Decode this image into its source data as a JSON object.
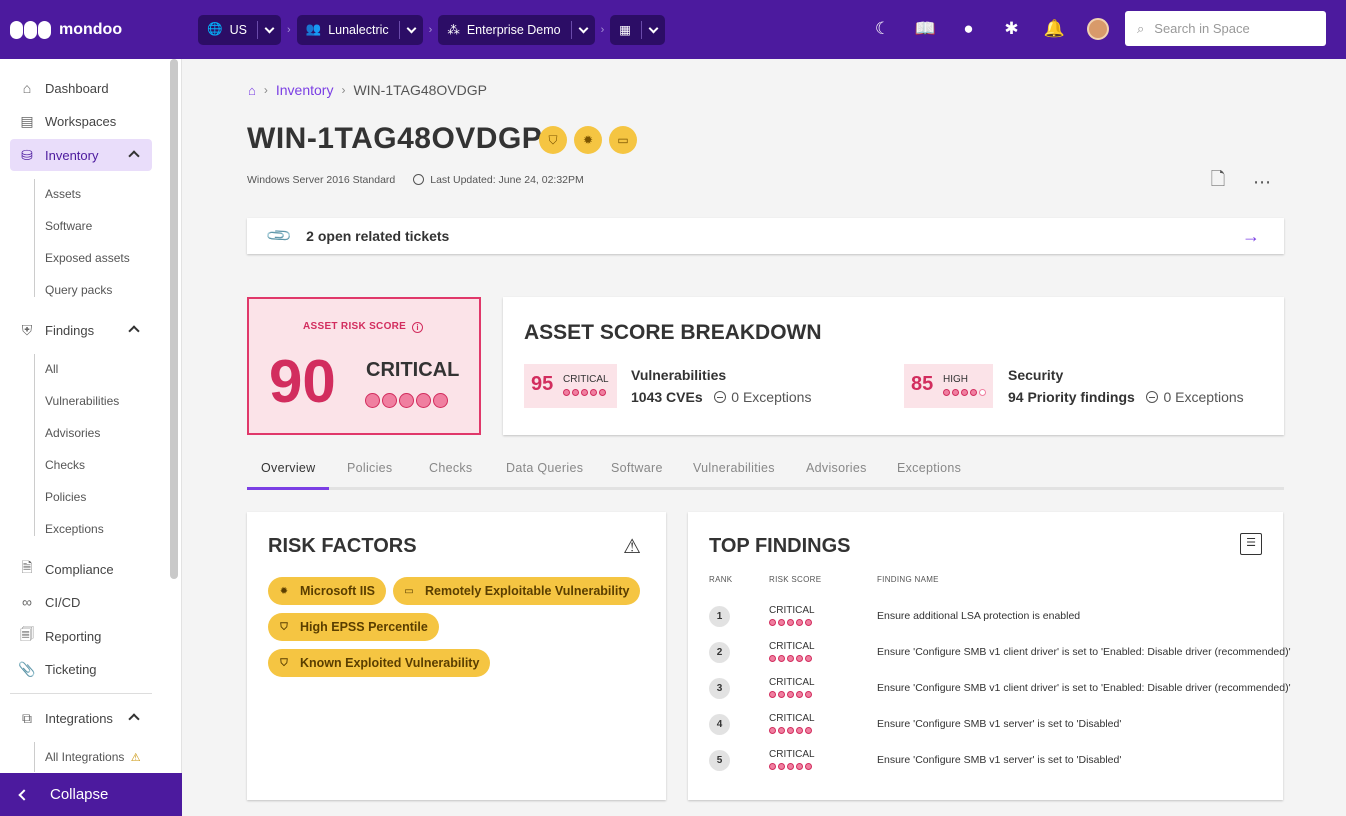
{
  "app": {
    "brand": "mondoo"
  },
  "topbar": {
    "scopes": [
      {
        "label": "US",
        "icon": "globe-icon"
      },
      {
        "label": "Lunalectric",
        "icon": "organization-icon"
      },
      {
        "label": "Enterprise Demo",
        "icon": "space-icon"
      },
      {
        "label": "",
        "icon": "grid-icon"
      }
    ],
    "search_placeholder": "Search in Space"
  },
  "sidebar": {
    "dashboard": "Dashboard",
    "workspaces": "Workspaces",
    "inventory": "Inventory",
    "inventory_items": [
      "Assets",
      "Software",
      "Exposed assets",
      "Query packs"
    ],
    "findings": "Findings",
    "findings_items": [
      "All",
      "Vulnerabilities",
      "Advisories",
      "Checks",
      "Policies",
      "Exceptions"
    ],
    "compliance": "Compliance",
    "cicd": "CI/CD",
    "reporting": "Reporting",
    "ticketing": "Ticketing",
    "integrations": "Integrations",
    "integrations_items": [
      "All Integrations"
    ],
    "collapse": "Collapse"
  },
  "breadcrumb": {
    "parent": "Inventory",
    "current": "WIN-1TAG48OVDGP"
  },
  "asset": {
    "title": "WIN-1TAG48OVDGP",
    "os": "Windows Server 2016 Standard",
    "last_updated": "Last Updated: June 24, 02:32PM"
  },
  "tickets": {
    "label": "2 open related tickets"
  },
  "risk": {
    "label": "ASSET RISK SCORE",
    "score": "90",
    "severity": "CRITICAL",
    "level": 5
  },
  "breakdown": {
    "title": "ASSET SCORE BREAKDOWN",
    "vulnerabilities": {
      "score": "95",
      "severity": "CRITICAL",
      "level": 5,
      "name": "Vulnerabilities",
      "count": "1043 CVEs",
      "exceptions": "0 Exceptions"
    },
    "security": {
      "score": "85",
      "severity": "HIGH",
      "level": 4,
      "name": "Security",
      "count": "94 Priority findings",
      "exceptions": "0 Exceptions"
    }
  },
  "tabs": [
    "Overview",
    "Policies",
    "Checks",
    "Data Queries",
    "Software",
    "Vulnerabilities",
    "Advisories",
    "Exceptions"
  ],
  "risk_factors": {
    "title": "RISK FACTORS",
    "items": [
      "Microsoft IIS",
      "Remotely Exploitable Vulnerability",
      "High EPSS Percentile",
      "Known Exploited Vulnerability"
    ]
  },
  "top_findings": {
    "title": "TOP FINDINGS",
    "columns": [
      "RANK",
      "RISK SCORE",
      "FINDING NAME"
    ],
    "rows": [
      {
        "rank": "1",
        "score": "CRITICAL",
        "name": "Ensure additional LSA protection is enabled"
      },
      {
        "rank": "2",
        "score": "CRITICAL",
        "name": "Ensure 'Configure SMB v1 client driver' is set to 'Enabled: Disable driver (recommended)'"
      },
      {
        "rank": "3",
        "score": "CRITICAL",
        "name": "Ensure 'Configure SMB v1 client driver' is set to 'Enabled: Disable driver (recommended)'"
      },
      {
        "rank": "4",
        "score": "CRITICAL",
        "name": "Ensure 'Configure SMB v1 server' is set to 'Disabled'"
      },
      {
        "rank": "5",
        "score": "CRITICAL",
        "name": "Ensure 'Configure SMB v1 server' is set to 'Disabled'"
      }
    ]
  },
  "colors": {
    "brand": "#4c1a9e",
    "accent": "#7b3fe4",
    "critical": "#d22d5e",
    "warning": "#f5c542"
  }
}
